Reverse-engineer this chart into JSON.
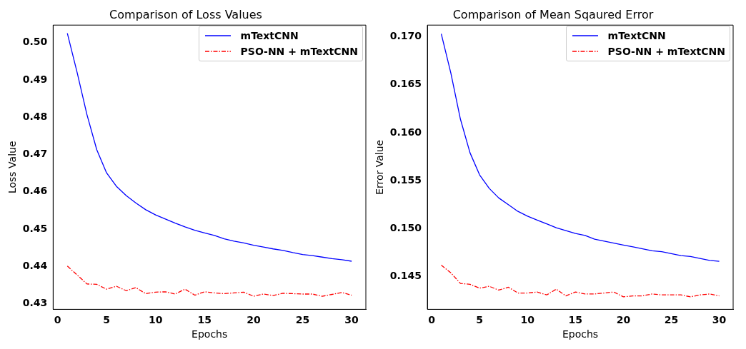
{
  "chart_data": [
    {
      "type": "line",
      "title": "Comparison of Loss Values",
      "xlabel": "Epochs",
      "ylabel": "Loss Value",
      "x": [
        1,
        2,
        3,
        4,
        5,
        6,
        7,
        8,
        9,
        10,
        11,
        12,
        13,
        14,
        15,
        16,
        17,
        18,
        19,
        20,
        21,
        22,
        23,
        24,
        25,
        26,
        27,
        28,
        29,
        30
      ],
      "xlim": [
        -0.45,
        31.45
      ],
      "xticks": [
        0,
        5,
        10,
        15,
        20,
        25,
        30
      ],
      "ylim": [
        0.4285,
        0.5047
      ],
      "yticks": [
        0.43,
        0.44,
        0.45,
        0.46,
        0.47,
        0.48,
        0.49,
        {
          "value": 0.5,
          "label": "0.50"
        }
      ],
      "grid": false,
      "legend": "top right",
      "marker": "none",
      "series": [
        {
          "name": "mTextCNN",
          "color": "#0000ff",
          "line_style": "solid",
          "values": [
            0.5025,
            0.492,
            0.4807,
            0.4713,
            0.4651,
            0.4615,
            0.459,
            0.457,
            0.4552,
            0.4538,
            0.4527,
            0.4516,
            0.4506,
            0.4497,
            0.449,
            0.4483,
            0.4474,
            0.4468,
            0.4463,
            0.4457,
            0.4452,
            0.4447,
            0.4443,
            0.4437,
            0.4432,
            0.4429,
            0.4425,
            0.4421,
            0.4418,
            0.4414
          ]
        },
        {
          "name": "PSO-NN + mTextCNN",
          "color": "#ff0000",
          "line_style": "dashed",
          "values": [
            0.4401,
            0.4377,
            0.4353,
            0.4352,
            0.4339,
            0.4347,
            0.4335,
            0.4343,
            0.4327,
            0.4331,
            0.4332,
            0.4326,
            0.4339,
            0.4323,
            0.4332,
            0.4329,
            0.4327,
            0.4329,
            0.4331,
            0.432,
            0.4326,
            0.4322,
            0.4328,
            0.4327,
            0.4326,
            0.4326,
            0.432,
            0.4325,
            0.433,
            0.4323
          ]
        }
      ]
    },
    {
      "type": "line",
      "title": "Comparison of Mean Sqaured Error",
      "xlabel": "Epochs",
      "ylabel": "Error Value",
      "x": [
        1,
        2,
        3,
        4,
        5,
        6,
        7,
        8,
        9,
        10,
        11,
        12,
        13,
        14,
        15,
        16,
        17,
        18,
        19,
        20,
        21,
        22,
        23,
        24,
        25,
        26,
        27,
        28,
        29,
        30
      ],
      "xlim": [
        -0.45,
        31.45
      ],
      "xticks": [
        0,
        5,
        10,
        15,
        20,
        25,
        30
      ],
      "ylim": [
        0.1416,
        0.1712
      ],
      "yticks": [
        {
          "value": 0.145,
          "label": "0.145"
        },
        {
          "value": 0.15,
          "label": "0.150"
        },
        {
          "value": 0.155,
          "label": "0.155"
        },
        {
          "value": 0.16,
          "label": "0.160"
        },
        {
          "value": 0.165,
          "label": "0.165"
        },
        {
          "value": 0.17,
          "label": "0.170"
        }
      ],
      "grid": false,
      "legend": "top right",
      "marker": "none",
      "series": [
        {
          "name": "mTextCNN",
          "color": "#0000ff",
          "line_style": "solid",
          "values": [
            0.1703,
            0.1662,
            0.1614,
            0.1579,
            0.1556,
            0.1542,
            0.1532,
            0.1525,
            0.1518,
            0.1513,
            0.1509,
            0.1505,
            0.1501,
            0.1498,
            0.1495,
            0.1493,
            0.1489,
            0.1487,
            0.1485,
            0.1483,
            0.1481,
            0.1479,
            0.1477,
            0.1476,
            0.1474,
            0.1472,
            0.1471,
            0.1469,
            0.1467,
            0.1466
          ]
        },
        {
          "name": "PSO-NN + mTextCNN",
          "color": "#ff0000",
          "line_style": "dashed",
          "values": [
            0.1462,
            0.1454,
            0.1443,
            0.1442,
            0.1438,
            0.144,
            0.1436,
            0.1439,
            0.1433,
            0.1433,
            0.1434,
            0.1431,
            0.1437,
            0.143,
            0.1434,
            0.1432,
            0.1432,
            0.1433,
            0.1434,
            0.1429,
            0.143,
            0.143,
            0.1432,
            0.1431,
            0.1431,
            0.1431,
            0.1429,
            0.1431,
            0.1432,
            0.143
          ]
        }
      ]
    }
  ]
}
